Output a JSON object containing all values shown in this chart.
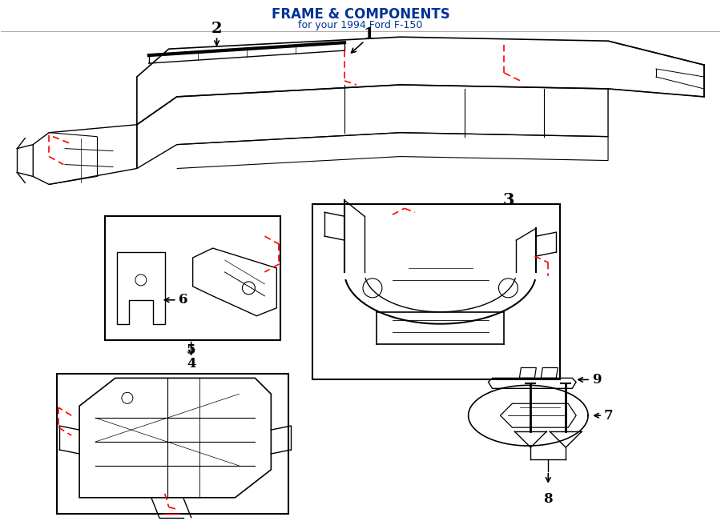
{
  "title": "FRAME & COMPONENTS",
  "subtitle": "for your 1994 Ford F-150",
  "bg_color": "#ffffff",
  "line_color": "#000000",
  "red_dash_color": "#ff0000",
  "blue_color": "#003399",
  "fig_width": 9.0,
  "fig_height": 6.61
}
